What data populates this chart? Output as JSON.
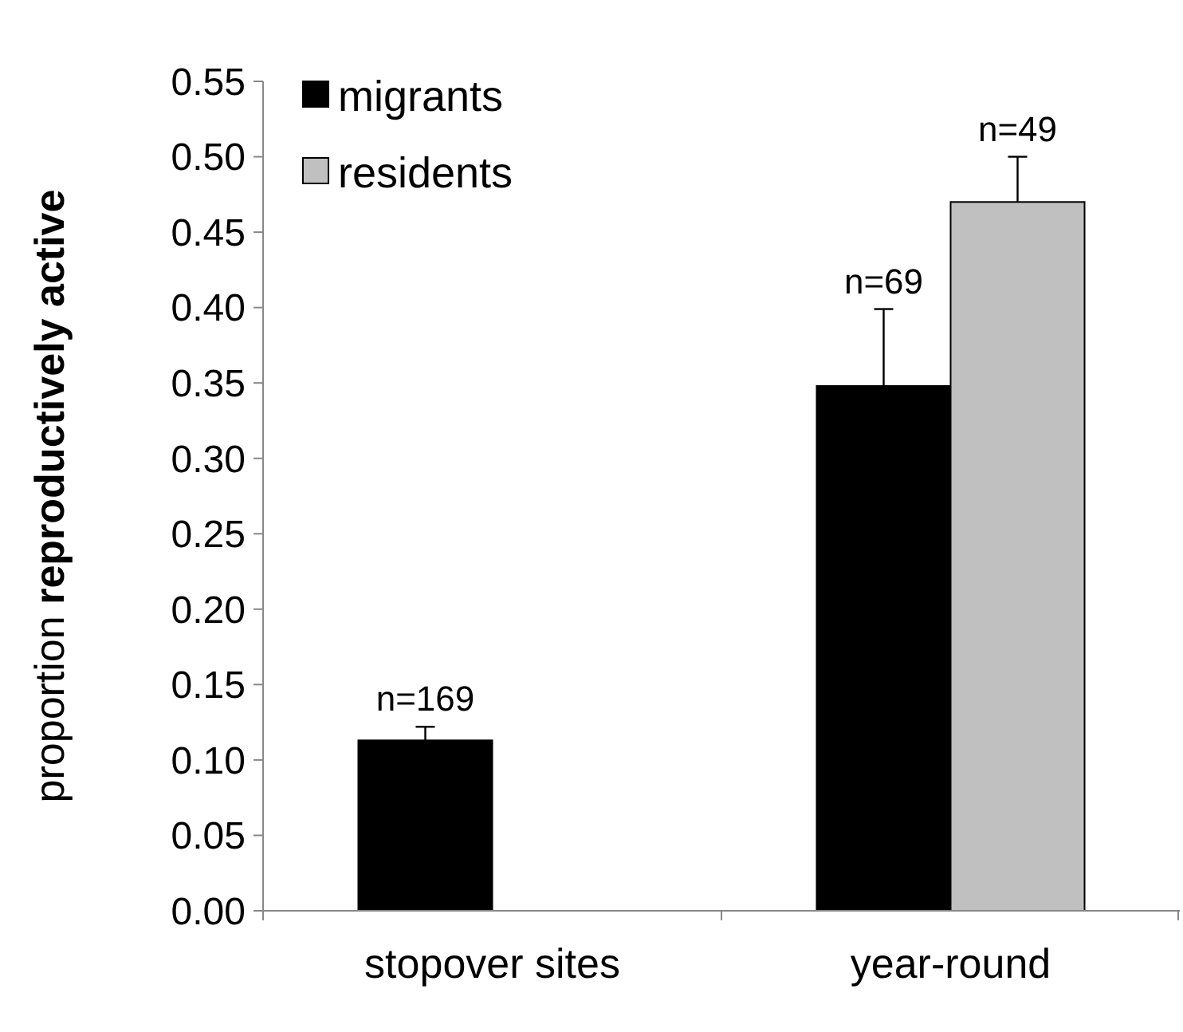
{
  "chart_data": {
    "type": "bar",
    "ylabel": "proportion reproductively active",
    "categories": [
      "stopover sites",
      "year-round"
    ],
    "series": [
      {
        "name": "migrants",
        "color": "#000000",
        "values": [
          0.113,
          0.348
        ],
        "errors": [
          [
            0.113,
            0.122
          ],
          [
            0.348,
            0.399
          ]
        ]
      },
      {
        "name": "residents",
        "color": "#c0c0c0",
        "values": [
          null,
          0.47
        ],
        "errors": [
          null,
          [
            0.47,
            0.5
          ]
        ]
      }
    ],
    "annotations": [
      {
        "text": "n=169",
        "x": "stopover sites",
        "y": 0.113
      },
      {
        "text": "n=69",
        "x": "year-round",
        "y": 0.348
      },
      {
        "text": "n=49",
        "x": "year-round",
        "y": 0.47
      }
    ],
    "ylim": [
      0,
      0.55
    ],
    "yticks": [
      {
        "value": 0,
        "label": "0.00"
      },
      {
        "value": 0.05,
        "label": "0.05"
      },
      {
        "value": 0.1,
        "label": "0.10"
      },
      {
        "value": 0.15,
        "label": "0.15"
      },
      {
        "value": 0.2,
        "label": "0.20"
      },
      {
        "value": 0.25,
        "label": "0.25"
      },
      {
        "value": 0.3,
        "label": "0.30"
      },
      {
        "value": 0.35,
        "label": "0.35"
      },
      {
        "value": 0.4,
        "label": "0.40"
      },
      {
        "value": 0.45,
        "label": "0.45"
      },
      {
        "value": 0.5,
        "label": "0.50"
      },
      {
        "value": 0.55,
        "label": "0.55"
      }
    ],
    "grid": false,
    "legend": "top left"
  }
}
